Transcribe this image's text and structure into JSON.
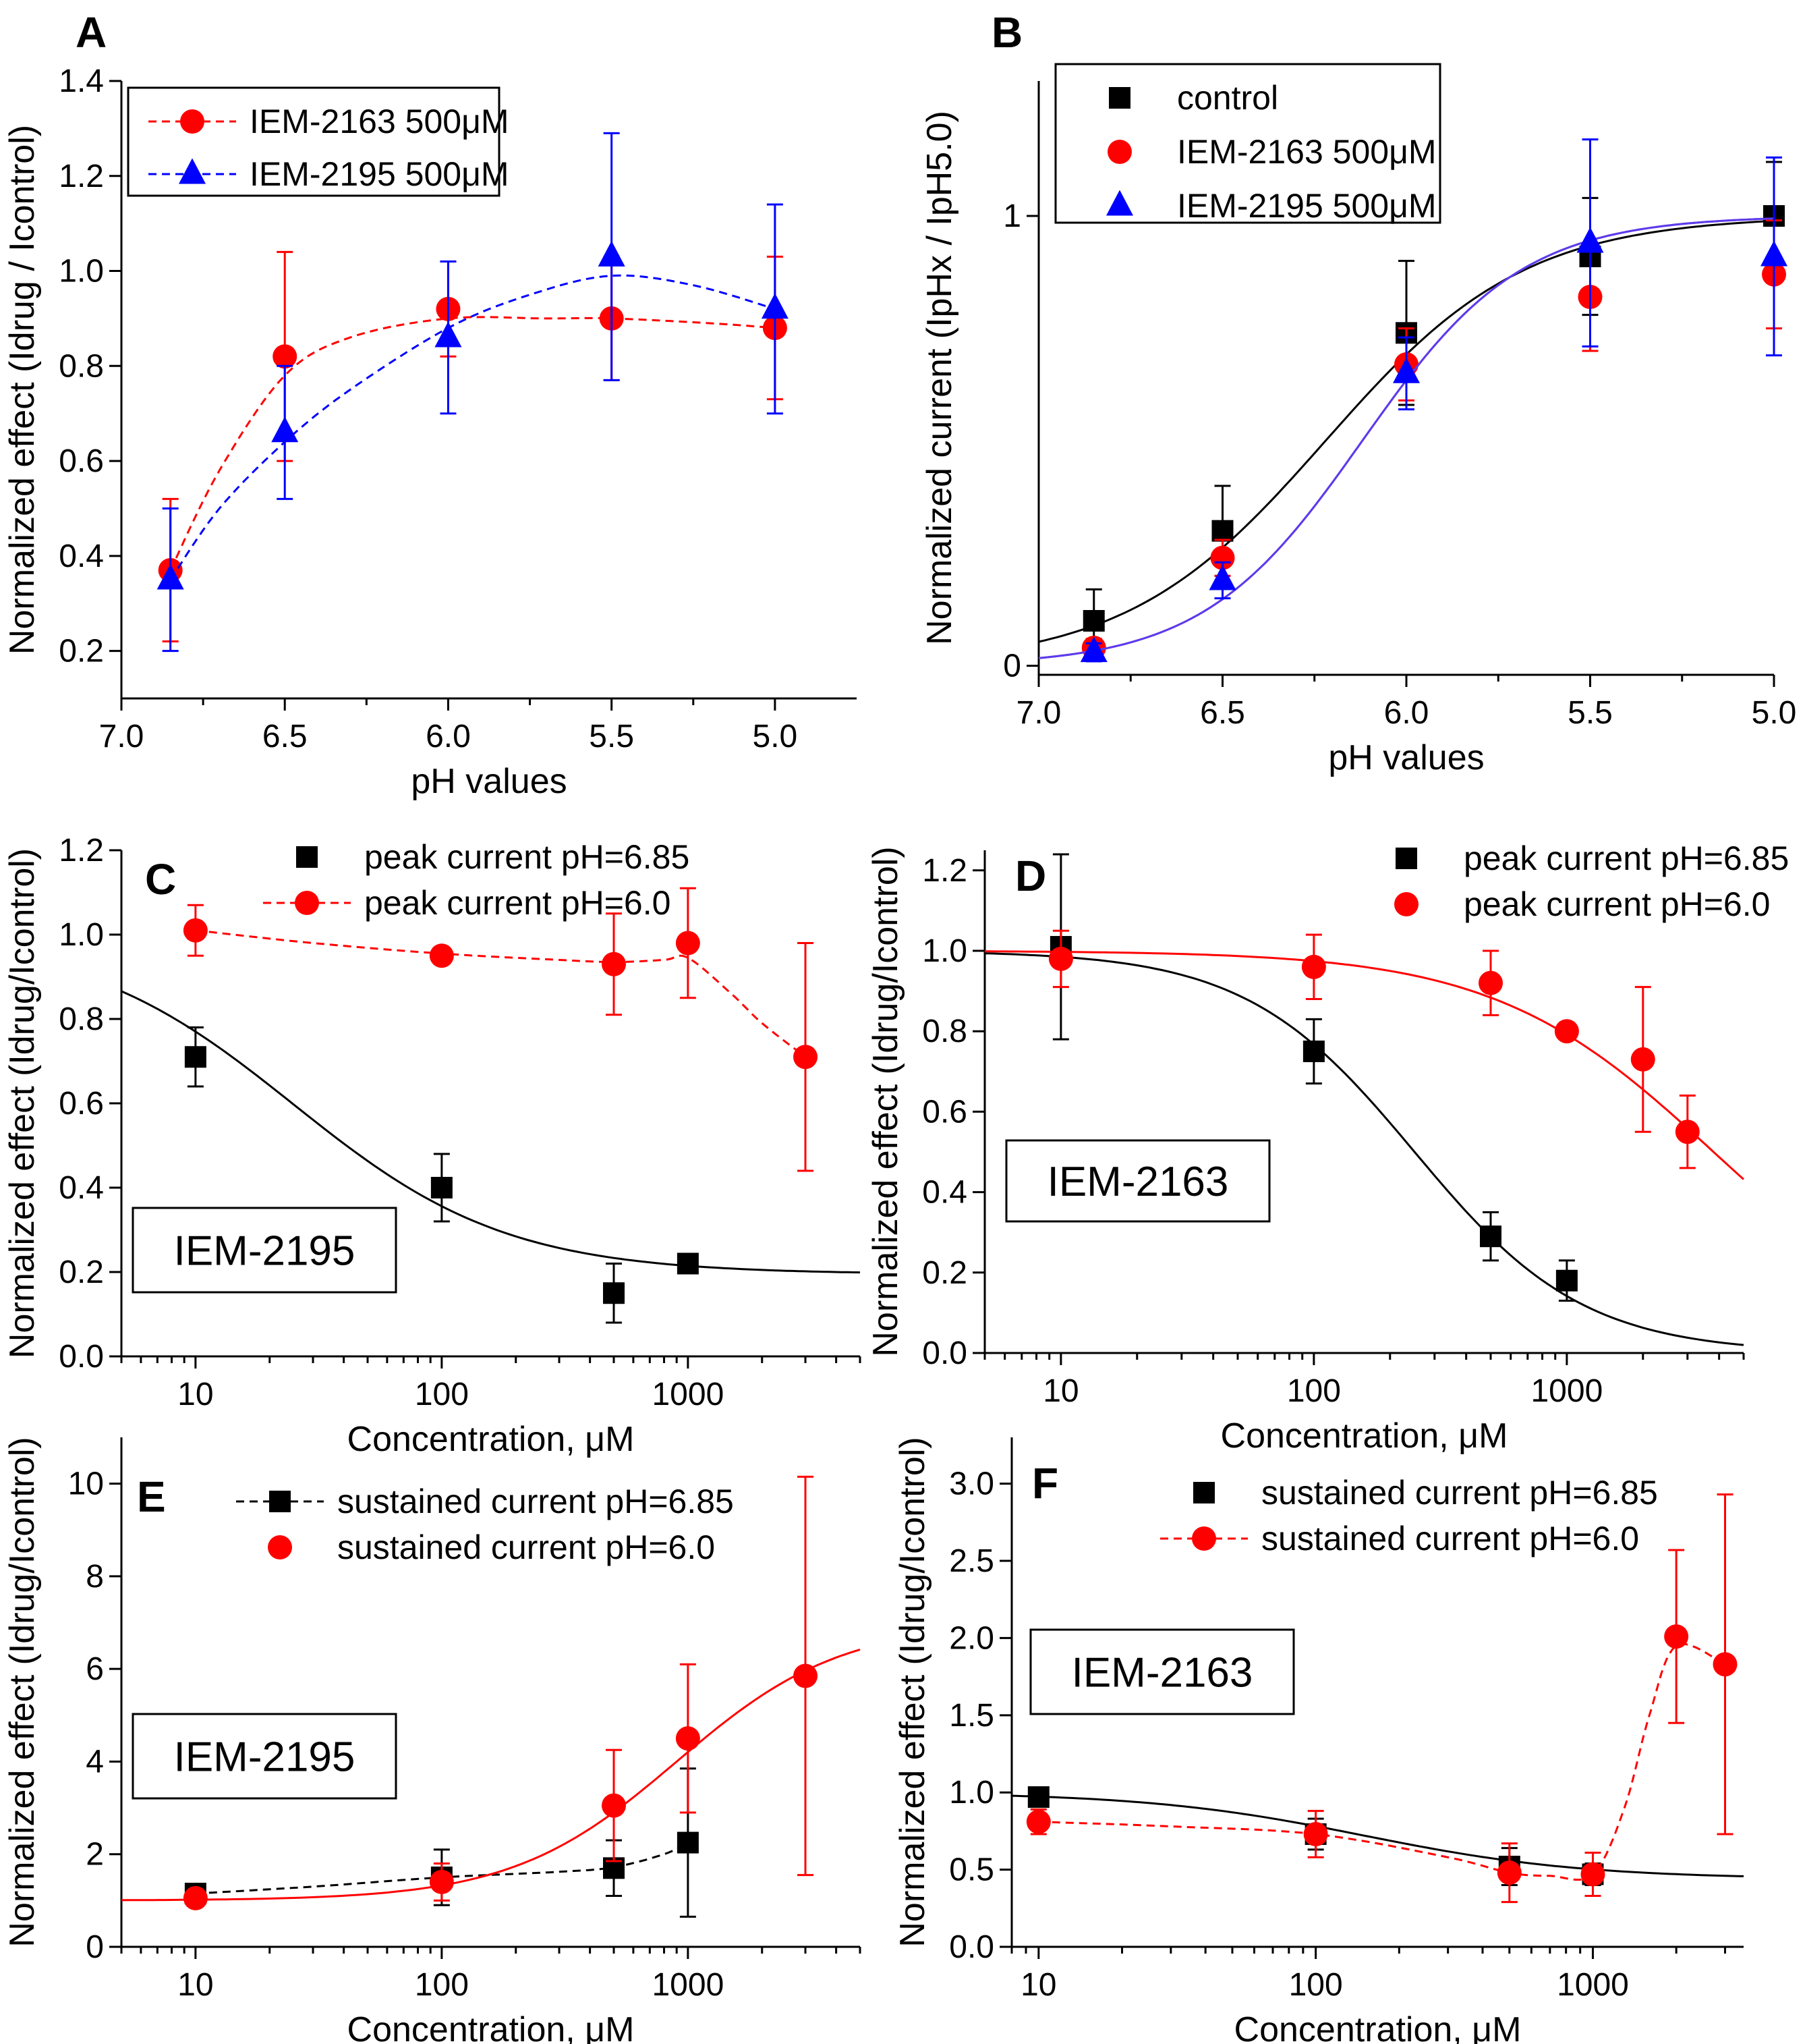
{
  "figure": {
    "colors": {
      "black": "#000000",
      "red": "#ff0000",
      "blue": "#0000ff",
      "purple": "#8844cc"
    }
  },
  "chart_data": [
    {
      "panel": "A",
      "type": "line",
      "xlabel": "pH values",
      "ylabel": "Normalized effect (Idrug / Icontrol)",
      "xlim": [
        7.0,
        4.75
      ],
      "ylim": [
        0.1,
        1.4
      ],
      "xticks": [
        7.0,
        6.5,
        6.0,
        5.5,
        5.0
      ],
      "xtick_labels": [
        "7.0",
        "6.5",
        "6.0",
        "5.5",
        "5.0"
      ],
      "yticks": [
        0.2,
        0.4,
        0.6,
        0.8,
        1.0,
        1.2,
        1.4
      ],
      "ytick_labels": [
        "0.2",
        "0.4",
        "0.6",
        "0.8",
        "1.0",
        "1.2",
        "1.4"
      ],
      "legend": {
        "position": "top-left",
        "entries": [
          "IEM-2163 500μM",
          "IEM-2195 500μM"
        ]
      },
      "series": [
        {
          "name": "IEM-2163 500μM",
          "color": "#ff0000",
          "marker": "circle",
          "line": "dashed",
          "x": [
            6.85,
            6.5,
            6.0,
            5.5,
            5.0
          ],
          "y": [
            0.37,
            0.82,
            0.92,
            0.9,
            0.88
          ],
          "err": [
            0.15,
            0.22,
            0.1,
            0.13,
            0.15
          ],
          "fit": {
            "x": [
              6.85,
              6.7,
              6.5,
              6.3,
              6.0,
              5.7,
              5.5,
              5.2,
              5.0
            ],
            "y": [
              0.37,
              0.58,
              0.78,
              0.86,
              0.9,
              0.9,
              0.9,
              0.89,
              0.88
            ]
          }
        },
        {
          "name": "IEM-2195 500μM",
          "color": "#0000ff",
          "marker": "triangle",
          "line": "dashed",
          "x": [
            6.85,
            6.5,
            6.0,
            5.5,
            5.0
          ],
          "y": [
            0.35,
            0.66,
            0.86,
            1.03,
            0.92
          ],
          "err": [
            0.15,
            0.14,
            0.16,
            0.26,
            0.22
          ],
          "fit": {
            "x": [
              6.85,
              6.7,
              6.5,
              6.3,
              6.0,
              5.75,
              5.5,
              5.25,
              5.0
            ],
            "y": [
              0.35,
              0.5,
              0.64,
              0.75,
              0.88,
              0.95,
              0.99,
              0.97,
              0.92
            ]
          }
        }
      ]
    },
    {
      "panel": "B",
      "type": "line",
      "xlabel": "pH values",
      "ylabel": "Normalized current (IpHx / IpH5.0)",
      "xlim": [
        7.0,
        5.0
      ],
      "ylim": [
        -0.02,
        1.3
      ],
      "xticks": [
        7.0,
        6.5,
        6.0,
        5.5,
        5.0
      ],
      "xtick_labels": [
        "7.0",
        "6.5",
        "6.0",
        "5.5",
        "5.0"
      ],
      "yticks": [
        0,
        1
      ],
      "ytick_labels": [
        "0",
        "1"
      ],
      "legend": {
        "position": "top-left",
        "entries": [
          "control",
          "IEM-2163 500μM",
          "IEM-2195 500μM"
        ]
      },
      "series": [
        {
          "name": "control",
          "color": "#000000",
          "marker": "square",
          "x": [
            6.85,
            6.5,
            6.0,
            5.5,
            5.0
          ],
          "y": [
            0.1,
            0.3,
            0.74,
            0.91,
            1.0
          ],
          "err": [
            0.07,
            0.1,
            0.16,
            0.13,
            0.12
          ],
          "fit": {
            "type": "boltzmann",
            "top": 1.0,
            "pH50": 6.22,
            "n": 1.6
          }
        },
        {
          "name": "IEM-2163 500μM",
          "color": "#ff0000",
          "marker": "circle",
          "x": [
            6.85,
            6.5,
            6.0,
            5.5,
            5.0
          ],
          "y": [
            0.04,
            0.24,
            0.67,
            0.82,
            0.87
          ],
          "err": [
            0.02,
            0.04,
            0.08,
            0.12,
            0.12
          ],
          "fit": {
            "type": "boltzmann",
            "top": 1.0,
            "pH50": 6.12,
            "n": 2.0
          }
        },
        {
          "name": "IEM-2195 500μM",
          "color": "#0000ff",
          "marker": "triangle",
          "x": [
            6.85,
            6.5,
            6.0,
            5.5,
            5.0
          ],
          "y": [
            0.03,
            0.19,
            0.65,
            0.94,
            0.91
          ],
          "err": [
            0.02,
            0.04,
            0.08,
            0.23,
            0.22
          ],
          "fit": {
            "type": "boltzmann",
            "top": 1.0,
            "pH50": 6.12,
            "n": 2.0
          }
        }
      ]
    },
    {
      "panel": "C",
      "type": "line",
      "scale_x": "log",
      "inset_label": "IEM-2195",
      "xlabel": "Concentration, μM",
      "ylabel": "Normalized effect (Idrug/Icontrol)",
      "xlim": [
        5,
        5000
      ],
      "ylim": [
        0,
        1.2
      ],
      "xticks": [
        10,
        100,
        1000
      ],
      "xtick_labels": [
        "10",
        "100",
        "1000"
      ],
      "yticks": [
        0.0,
        0.2,
        0.4,
        0.6,
        0.8,
        1.0,
        1.2
      ],
      "ytick_labels": [
        "0.0",
        "0.2",
        "0.4",
        "0.6",
        "0.8",
        "1.0",
        "1.2"
      ],
      "legend": {
        "position": "top",
        "entries": [
          "peak current pH=6.85",
          "peak current pH=6.0"
        ]
      },
      "series": [
        {
          "name": "peak current pH=6.85",
          "color": "#000000",
          "marker": "square",
          "x": [
            10,
            100,
            500,
            1000
          ],
          "y": [
            0.71,
            0.4,
            0.15,
            0.22
          ],
          "err": [
            0.07,
            0.08,
            0.07,
            0.02
          ],
          "fit": {
            "type": "hill",
            "bottom": 0.195,
            "top": 1.0,
            "ic50": 25,
            "n": 1.0
          }
        },
        {
          "name": "peak current pH=6.0",
          "color": "#ff0000",
          "marker": "circle",
          "line": "dashed",
          "x": [
            10,
            100,
            500,
            1000,
            3000
          ],
          "y": [
            1.01,
            0.95,
            0.93,
            0.98,
            0.71
          ],
          "err": [
            0.06,
            0.0,
            0.12,
            0.13,
            0.27
          ],
          "fit": {
            "x": [
              10,
              30,
              100,
              300,
              500,
              800,
              1000,
              1500,
              2000,
              3000
            ],
            "y": [
              1.01,
              0.98,
              0.955,
              0.94,
              0.935,
              0.94,
              0.945,
              0.86,
              0.79,
              0.71
            ]
          }
        }
      ]
    },
    {
      "panel": "D",
      "type": "line",
      "scale_x": "log",
      "inset_label": "IEM-2163",
      "xlabel": "Concentration, μM",
      "ylabel": "Normalized effect (Idrug/Icontrol)",
      "xlim": [
        5,
        5000
      ],
      "ylim": [
        0,
        1.25
      ],
      "xticks": [
        10,
        100,
        1000
      ],
      "xtick_labels": [
        "10",
        "100",
        "1000"
      ],
      "yticks": [
        0.0,
        0.2,
        0.4,
        0.6,
        0.8,
        1.0,
        1.2
      ],
      "ytick_labels": [
        "0.0",
        "0.2",
        "0.4",
        "0.6",
        "0.8",
        "1.0",
        "1.2"
      ],
      "legend": {
        "position": "top-right",
        "entries": [
          "peak current pH=6.85",
          "peak current pH=6.0"
        ]
      },
      "series": [
        {
          "name": "peak current pH=6.85",
          "color": "#000000",
          "marker": "square",
          "x": [
            10,
            100,
            500,
            1000
          ],
          "y": [
            1.01,
            0.75,
            0.29,
            0.18
          ],
          "err": [
            0.23,
            0.08,
            0.06,
            0.05
          ],
          "fit": {
            "type": "hill",
            "bottom": 0.0,
            "top": 1.0,
            "ic50": 250,
            "n": 1.3
          }
        },
        {
          "name": "peak current pH=6.0",
          "color": "#ff0000",
          "marker": "circle",
          "x": [
            10,
            100,
            500,
            1000,
            2000,
            3000
          ],
          "y": [
            0.98,
            0.96,
            0.92,
            0.8,
            0.73,
            0.55
          ],
          "err": [
            0.07,
            0.08,
            0.08,
            0.0,
            0.18,
            0.09
          ],
          "fit": {
            "type": "hill",
            "bottom": 0.0,
            "top": 1.0,
            "ic50": 3800,
            "n": 1.0
          }
        }
      ]
    },
    {
      "panel": "E",
      "type": "line",
      "scale_x": "log",
      "inset_label": "IEM-2195",
      "xlabel": "Concentration, μM",
      "ylabel": "Normalized effect (Idrug/Icontrol)",
      "xlim": [
        5,
        5000
      ],
      "ylim": [
        0,
        11
      ],
      "xticks": [
        10,
        100,
        1000
      ],
      "xtick_labels": [
        "10",
        "100",
        "1000"
      ],
      "yticks": [
        0,
        2,
        4,
        6,
        8,
        10
      ],
      "ytick_labels": [
        "0",
        "2",
        "4",
        "6",
        "8",
        "10"
      ],
      "legend": {
        "position": "top",
        "entries": [
          "sustained current pH=6.85",
          "sustained current pH=6.0"
        ]
      },
      "series": [
        {
          "name": "sustained current pH=6.85",
          "color": "#000000",
          "marker": "square",
          "line": "dashed",
          "x": [
            10,
            100,
            500,
            1000
          ],
          "y": [
            1.15,
            1.5,
            1.7,
            2.25
          ],
          "err": [
            0.1,
            0.6,
            0.6,
            1.6
          ],
          "fit": {
            "x": [
              10,
              30,
              100,
              300,
              500,
              800,
              1000
            ],
            "y": [
              1.15,
              1.3,
              1.5,
              1.62,
              1.72,
              2.0,
              2.25
            ]
          }
        },
        {
          "name": "sustained current pH=6.0",
          "color": "#ff0000",
          "marker": "circle",
          "x": [
            10,
            100,
            500,
            1000,
            3000
          ],
          "y": [
            1.05,
            1.4,
            3.05,
            4.5,
            5.85
          ],
          "err": [
            0.1,
            0.4,
            1.2,
            1.6,
            4.3
          ],
          "fit": {
            "type": "hill_rise",
            "bottom": 1.0,
            "top": 7.0,
            "ec50": 900,
            "n": 1.3
          }
        }
      ]
    },
    {
      "panel": "F",
      "type": "line",
      "scale_x": "log",
      "inset_label": "IEM-2163",
      "xlabel": "Concentration, μM",
      "ylabel": "Normalized effect (Idrug/Icontrol)",
      "xlim": [
        8,
        3500
      ],
      "ylim": [
        0,
        3.3
      ],
      "xticks": [
        10,
        100,
        1000
      ],
      "xtick_labels": [
        "10",
        "100",
        "1000"
      ],
      "yticks": [
        0.0,
        0.5,
        1.0,
        1.5,
        2.0,
        2.5,
        3.0
      ],
      "ytick_labels": [
        "0.0",
        "0.5",
        "1.0",
        "1.5",
        "2.0",
        "2.5",
        "3.0"
      ],
      "legend": {
        "position": "top",
        "entries": [
          "sustained current pH=6.85",
          "sustained current pH=6.0"
        ]
      },
      "series": [
        {
          "name": "sustained current pH=6.85",
          "color": "#000000",
          "marker": "square",
          "x": [
            10,
            100,
            500,
            1000
          ],
          "y": [
            0.97,
            0.73,
            0.52,
            0.47
          ],
          "err": [
            0.06,
            0.1,
            0.12,
            0.07
          ],
          "fit": {
            "type": "hill",
            "bottom": 0.44,
            "top": 1.0,
            "ic50": 150,
            "n": 1.1
          }
        },
        {
          "name": "sustained current pH=6.0",
          "color": "#ff0000",
          "marker": "circle",
          "line": "dashed",
          "x": [
            10,
            100,
            500,
            1000,
            2000,
            3000
          ],
          "y": [
            0.81,
            0.73,
            0.48,
            0.47,
            2.01,
            1.83
          ],
          "err": [
            0.08,
            0.15,
            0.19,
            0.14,
            0.56,
            1.1
          ],
          "fit": {
            "x": [
              10,
              30,
              100,
              300,
              500,
              700,
              1000,
              1300,
              1600,
              2000,
              3000
            ],
            "y": [
              0.81,
              0.78,
              0.73,
              0.58,
              0.48,
              0.46,
              0.47,
              0.9,
              1.5,
              1.95,
              1.83
            ]
          }
        }
      ]
    }
  ]
}
